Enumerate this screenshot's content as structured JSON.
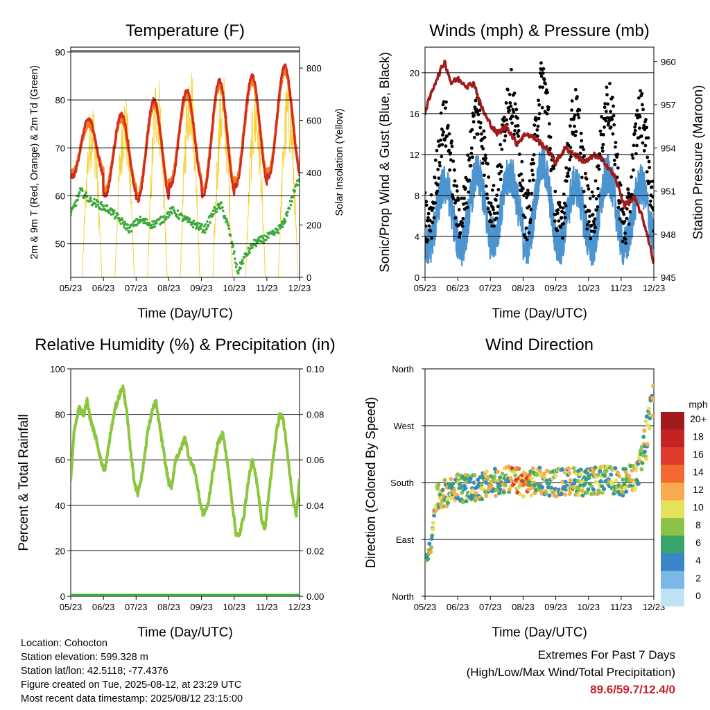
{
  "info": {
    "location": "Location: Cohocton",
    "elevation": "Station elevation: 599.328 m",
    "latlon": "Station lat/lon: 42.5118; -77.4376",
    "created": "Figure created on Tue, 2025-08-12, at 23:29 UTC",
    "recent": "Most recent data timestamp: 2025/08/12 23:15:00"
  },
  "extremes": {
    "title": "Extremes For Past 7 Days",
    "subtitle": "(High/Low/Max Wind/Total Precipitation)",
    "values": "89.6/59.7/12.4/0",
    "color": "#c8202a"
  },
  "chart_data": [
    {
      "id": "temperature",
      "type": "line",
      "title": "Temperature (F)",
      "xlabel": "Time (Day/UTC)",
      "ylabel": "2m & 9m T (Red, Orange) & 2m Td (Green)",
      "y2label": "Solar Insolation (Yellow)",
      "x_ticks": [
        "05/23",
        "06/23",
        "07/23",
        "08/23",
        "09/23",
        "10/23",
        "11/23",
        "12/23"
      ],
      "xlim": [
        0,
        7
      ],
      "ylim": [
        43,
        91
      ],
      "y_ticks": [
        50,
        60,
        70,
        80,
        90
      ],
      "y2lim": [
        0,
        880
      ],
      "y2_ticks": [
        0,
        200,
        400,
        600,
        800
      ],
      "grid": true,
      "series": [
        {
          "name": "2m T",
          "color": "#d42a20",
          "daily_min": [
            64,
            60,
            59,
            62,
            60,
            62,
            64,
            62
          ],
          "daily_max": [
            76,
            77,
            80,
            82,
            84,
            85,
            87,
            89
          ]
        },
        {
          "name": "9m T",
          "color": "#f07f1e",
          "daily_min": [
            65,
            61,
            60,
            63,
            61,
            63,
            65,
            63
          ],
          "daily_max": [
            75,
            76,
            79,
            81,
            83,
            84,
            86,
            88
          ]
        },
        {
          "name": "2m Td",
          "color": "#3aa83a",
          "points": [
            [
              0,
              56
            ],
            [
              0.3,
              61
            ],
            [
              0.6,
              59
            ],
            [
              0.9,
              58
            ],
            [
              1.2,
              57
            ],
            [
              1.5,
              55
            ],
            [
              1.8,
              53
            ],
            [
              2.1,
              55
            ],
            [
              2.5,
              54
            ],
            [
              2.8,
              55
            ],
            [
              3.1,
              57
            ],
            [
              3.5,
              55
            ],
            [
              3.8,
              54
            ],
            [
              4.1,
              53
            ],
            [
              4.4,
              57
            ],
            [
              4.6,
              58
            ],
            [
              4.8,
              54
            ],
            [
              5.0,
              48
            ],
            [
              5.1,
              44
            ],
            [
              5.3,
              47
            ],
            [
              5.6,
              50
            ],
            [
              5.9,
              51
            ],
            [
              6.2,
              52
            ],
            [
              6.5,
              54
            ],
            [
              6.8,
              60
            ],
            [
              7.0,
              64
            ]
          ]
        },
        {
          "name": "Solar Insolation",
          "color": "#f7d23a",
          "axis": "y2",
          "daily_peak": [
            700,
            720,
            820,
            860,
            800,
            750,
            780,
            840
          ]
        }
      ]
    },
    {
      "id": "winds",
      "type": "line",
      "title": "Winds (mph) & Pressure (mb)",
      "xlabel": "Time (Day/UTC)",
      "ylabel": "Sonic/Prop Wind & Gust (Blue, Black)",
      "y2label": "Station Pressure (Maroon)",
      "x_ticks": [
        "05/23",
        "06/23",
        "07/23",
        "08/23",
        "09/23",
        "10/23",
        "11/23",
        "12/23"
      ],
      "xlim": [
        0,
        7
      ],
      "ylim": [
        0,
        22.5
      ],
      "y_ticks": [
        0,
        4,
        8,
        12,
        16,
        20
      ],
      "y2lim": [
        945,
        961
      ],
      "y2_ticks": [
        945,
        948,
        951,
        954,
        957,
        960
      ],
      "grid": true,
      "series": [
        {
          "name": "Sonic/Prop Wind",
          "color": "#4c94d0",
          "daily_min": [
            3,
            3,
            4,
            3,
            3,
            3,
            3,
            4
          ],
          "daily_max": [
            9,
            10,
            10,
            11,
            9,
            10,
            9,
            9
          ]
        },
        {
          "name": "Gust",
          "color": "#000000",
          "daily_min": [
            5,
            6,
            7,
            6,
            5,
            6,
            5,
            6
          ],
          "daily_max": [
            15,
            16,
            18,
            19,
            16,
            17,
            16,
            16
          ]
        },
        {
          "name": "Station Pressure",
          "color": "#a01c1c",
          "axis": "y2",
          "points": [
            [
              0,
              956.5
            ],
            [
              0.3,
              958.5
            ],
            [
              0.6,
              960
            ],
            [
              0.8,
              958.5
            ],
            [
              1.0,
              958.8
            ],
            [
              1.3,
              958.3
            ],
            [
              1.5,
              958.5
            ],
            [
              1.7,
              957
            ],
            [
              1.9,
              956
            ],
            [
              2.2,
              955
            ],
            [
              2.5,
              955.5
            ],
            [
              2.8,
              954.3
            ],
            [
              3.1,
              955
            ],
            [
              3.4,
              954.6
            ],
            [
              3.7,
              954
            ],
            [
              4.0,
              953
            ],
            [
              4.3,
              954
            ],
            [
              4.6,
              953.5
            ],
            [
              4.9,
              953
            ],
            [
              5.2,
              953.5
            ],
            [
              5.5,
              953
            ],
            [
              5.8,
              952
            ],
            [
              6.1,
              950
            ],
            [
              6.4,
              950.5
            ],
            [
              6.6,
              949.5
            ],
            [
              6.8,
              948
            ],
            [
              7.0,
              946
            ]
          ]
        }
      ]
    },
    {
      "id": "humidity",
      "type": "line",
      "title": "Relative Humidity (%) & Precipitation (in)",
      "xlabel": "Time (Day/UTC)",
      "ylabel": "Percent & Total Rainfall",
      "x_ticks": [
        "05/23",
        "06/23",
        "07/23",
        "08/23",
        "09/23",
        "10/23",
        "11/23",
        "12/23"
      ],
      "xlim": [
        0,
        7
      ],
      "ylim": [
        0,
        100
      ],
      "y_ticks": [
        0,
        20,
        40,
        60,
        80,
        100
      ],
      "y2lim": [
        0,
        0.1
      ],
      "y2_ticks": [
        "0.00",
        "0.02",
        "0.04",
        "0.06",
        "0.08",
        "0.10"
      ],
      "grid": true,
      "series": [
        {
          "name": "Relative Humidity",
          "color": "#8cc63f",
          "points": [
            [
              0,
              50
            ],
            [
              0.1,
              72
            ],
            [
              0.25,
              83
            ],
            [
              0.4,
              80
            ],
            [
              0.5,
              86
            ],
            [
              0.6,
              78
            ],
            [
              0.8,
              68
            ],
            [
              0.95,
              58
            ],
            [
              1.05,
              55
            ],
            [
              1.2,
              70
            ],
            [
              1.35,
              82
            ],
            [
              1.5,
              89
            ],
            [
              1.6,
              92
            ],
            [
              1.7,
              83
            ],
            [
              1.8,
              68
            ],
            [
              1.95,
              50
            ],
            [
              2.05,
              45
            ],
            [
              2.2,
              55
            ],
            [
              2.35,
              72
            ],
            [
              2.5,
              82
            ],
            [
              2.6,
              86
            ],
            [
              2.75,
              72
            ],
            [
              2.9,
              58
            ],
            [
              3.0,
              50
            ],
            [
              3.1,
              48
            ],
            [
              3.2,
              60
            ],
            [
              3.35,
              64
            ],
            [
              3.5,
              70
            ],
            [
              3.6,
              62
            ],
            [
              3.8,
              55
            ],
            [
              3.95,
              42
            ],
            [
              4.05,
              36
            ],
            [
              4.2,
              40
            ],
            [
              4.35,
              55
            ],
            [
              4.5,
              67
            ],
            [
              4.65,
              72
            ],
            [
              4.8,
              58
            ],
            [
              4.95,
              40
            ],
            [
              5.05,
              28
            ],
            [
              5.15,
              26
            ],
            [
              5.3,
              36
            ],
            [
              5.45,
              52
            ],
            [
              5.55,
              60
            ],
            [
              5.7,
              50
            ],
            [
              5.85,
              33
            ],
            [
              5.95,
              30
            ],
            [
              6.1,
              50
            ],
            [
              6.3,
              73
            ],
            [
              6.4,
              80
            ],
            [
              6.5,
              78
            ],
            [
              6.65,
              60
            ],
            [
              6.8,
              42
            ],
            [
              6.9,
              36
            ],
            [
              7.0,
              52
            ]
          ]
        },
        {
          "name": "Total Precipitation",
          "color": "#3aa83a",
          "axis": "y2",
          "points": [
            [
              0,
              0
            ],
            [
              7,
              0
            ]
          ]
        }
      ]
    },
    {
      "id": "wind_direction",
      "type": "scatter",
      "title": "Wind Direction",
      "xlabel": "Time (Day/UTC)",
      "ylabel": "Direction (Colored By Speed)",
      "x_ticks": [
        "05/23",
        "06/23",
        "07/23",
        "08/23",
        "09/23",
        "10/23",
        "11/23",
        "12/23"
      ],
      "xlim": [
        0,
        7
      ],
      "ylim": [
        0,
        360
      ],
      "y_ticks": [
        "North",
        "East",
        "South",
        "West",
        "North"
      ],
      "grid": true,
      "legend_title": "mph",
      "legend": [
        {
          "label": "20+",
          "color": "#a31a1c"
        },
        {
          "label": "18",
          "color": "#c42326"
        },
        {
          "label": "16",
          "color": "#e03a2c"
        },
        {
          "label": "14",
          "color": "#f26a30"
        },
        {
          "label": "12",
          "color": "#f9a94f"
        },
        {
          "label": "10",
          "color": "#e4e15a"
        },
        {
          "label": "8",
          "color": "#8bc24a"
        },
        {
          "label": "6",
          "color": "#3aa56a"
        },
        {
          "label": "4",
          "color": "#3b86c6"
        },
        {
          "label": "2",
          "color": "#7ab8e6"
        },
        {
          "label": "0",
          "color": "#bfe3f5"
        }
      ],
      "direction_trend": [
        [
          0,
          60
        ],
        [
          0.1,
          70
        ],
        [
          0.2,
          80
        ],
        [
          0.3,
          150
        ],
        [
          0.5,
          160
        ],
        [
          0.8,
          168
        ],
        [
          1.0,
          172
        ],
        [
          1.3,
          170
        ],
        [
          1.6,
          172
        ],
        [
          2.0,
          178
        ],
        [
          2.5,
          185
        ],
        [
          3.0,
          180
        ],
        [
          3.5,
          182
        ],
        [
          4.0,
          180
        ],
        [
          4.5,
          183
        ],
        [
          5.0,
          180
        ],
        [
          5.5,
          185
        ],
        [
          6.0,
          180
        ],
        [
          6.5,
          192
        ],
        [
          6.7,
          230
        ],
        [
          7.0,
          320
        ]
      ],
      "legend_placement": "right"
    }
  ]
}
